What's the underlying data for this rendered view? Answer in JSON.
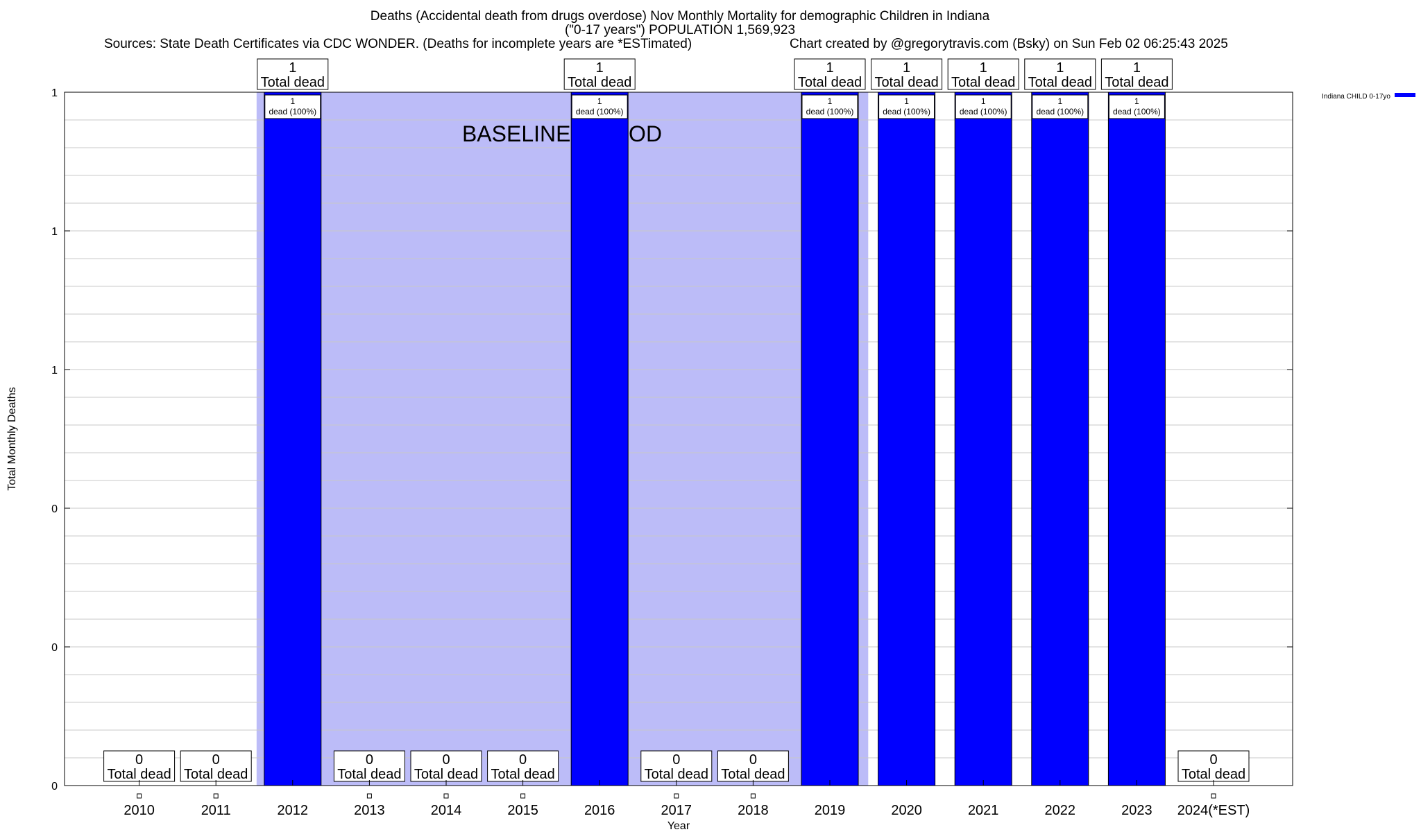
{
  "header": {
    "title_line1": "Deaths (Accidental death from drugs overdose) Nov Monthly Mortality for demographic Children in Indiana",
    "title_line2": "(\"0-17 years\") POPULATION 1,569,923",
    "sources": "Sources: State Death Certificates via CDC WONDER. (Deaths for incomplete years are *ESTimated)",
    "credit": "Chart created by @gregorytravis.com (Bsky) on Sun Feb 02 06:25:43 2025"
  },
  "colors": {
    "bar": "#0000ff",
    "baseline_band": "#bcbcf8",
    "grid": "#c8c8c8"
  },
  "chart_data": {
    "type": "bar",
    "xlabel": "Year",
    "ylabel": "Total Monthly Deaths",
    "ylim": [
      0,
      1
    ],
    "ytick_values": [
      0,
      0.2,
      0.4,
      0.6,
      0.8,
      1
    ],
    "ytick_labels": [
      "0",
      "0",
      "0",
      "1",
      "1",
      "1"
    ],
    "grid": true,
    "legend_position": "top-right",
    "categories": [
      "2010",
      "2011",
      "2012",
      "2013",
      "2014",
      "2015",
      "2016",
      "2017",
      "2018",
      "2019",
      "2020",
      "2021",
      "2022",
      "2023",
      "2024(*EST)"
    ],
    "series": [
      {
        "name": "Indiana CHILD 0-17yo",
        "values": [
          0,
          0,
          1,
          0,
          0,
          0,
          1,
          0,
          0,
          1,
          1,
          1,
          1,
          1,
          0
        ]
      }
    ],
    "total_labels": [
      "0",
      "0",
      "1",
      "0",
      "0",
      "0",
      "1",
      "0",
      "0",
      "1",
      "1",
      "1",
      "1",
      "1",
      "0"
    ],
    "total_suffix": "Total dead",
    "bar_labels": [
      "",
      "",
      "1",
      "",
      "",
      "",
      "1",
      "",
      "",
      "1",
      "1",
      "1",
      "1",
      "1",
      ""
    ],
    "bar_label_suffix": "dead (100%)",
    "baseline": {
      "label": "BASELINE PERIOD",
      "start_index": 2,
      "end_index": 9
    }
  }
}
